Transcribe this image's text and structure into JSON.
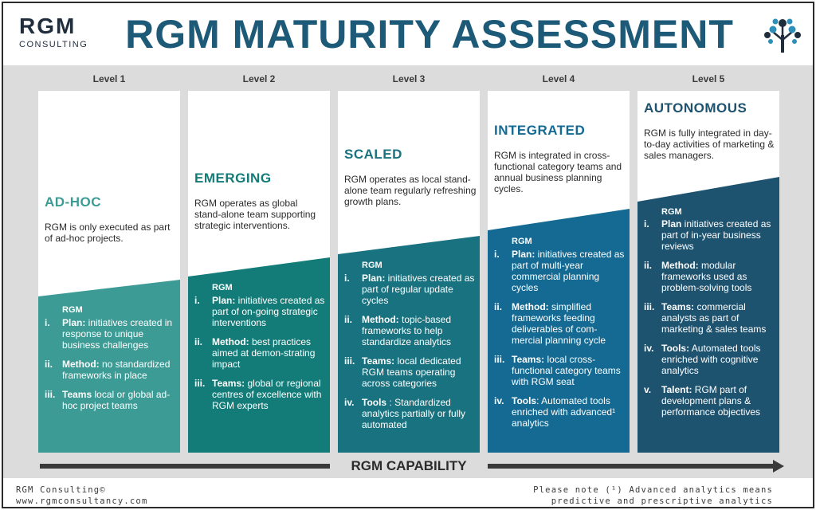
{
  "brand": {
    "name": "RGM",
    "sub": "CONSULTING"
  },
  "title": "RGM MATURITY ASSESSMENT",
  "colors": {
    "title": "#1d5a78",
    "level1": "#3d9b95",
    "level2": "#137c78",
    "level3": "#19727f",
    "level4": "#146a92",
    "level5": "#1e5370",
    "background": "#dcdcdc"
  },
  "levels": [
    {
      "header": "Level 1",
      "name": "AD-HOC",
      "description": "RGM is only executed as part of ad-hoc projects.",
      "rgm_label": "RGM",
      "items": [
        {
          "num": "i.",
          "key": "Plan:",
          "text": " initiatives created in response to unique business challenges"
        },
        {
          "num": "ii.",
          "key": "Method:",
          "text": " no standardized frameworks in place"
        },
        {
          "num": "iii.",
          "key": "Teams",
          "text": " local or global ad-hoc project teams"
        }
      ]
    },
    {
      "header": "Level 2",
      "name": "EMERGING",
      "description": "RGM operates as global stand-alone team supporting strategic interventions.",
      "rgm_label": "RGM",
      "items": [
        {
          "num": "i.",
          "key": "Plan:",
          "text": " initiatives created as part of on-going strategic interventions"
        },
        {
          "num": "ii.",
          "key": "Method:",
          "text": " best practices aimed at demon-strating impact"
        },
        {
          "num": "iii.",
          "key": "Teams:",
          "text": " global or regional centres of excellence with RGM experts"
        }
      ]
    },
    {
      "header": "Level 3",
      "name": "SCALED",
      "description": "RGM operates as local stand-alone team regularly refreshing growth plans.",
      "rgm_label": "RGM",
      "items": [
        {
          "num": "i.",
          "key": "Plan:",
          "text": " initiatives created as part of regular update cycles"
        },
        {
          "num": "ii.",
          "key": "Method:",
          "text": " topic-based frameworks to help standardize analytics"
        },
        {
          "num": "iii.",
          "key": "Teams:",
          "text": " local dedicated RGM teams operating across categories"
        },
        {
          "num": "iv.",
          "key": "Tools",
          "text": " : Standardized analytics partially or fully automated"
        }
      ]
    },
    {
      "header": "Level 4",
      "name": "INTEGRATED",
      "description": "RGM is integrated in cross-functional category teams and annual business planning cycles.",
      "rgm_label": "RGM",
      "items": [
        {
          "num": "i.",
          "key": "Plan:",
          "text": " initiatives created as part of multi-year commercial planning cycles"
        },
        {
          "num": "ii.",
          "key": "Method:",
          "text": " simplified frameworks feeding deliverables of com-mercial planning cycle"
        },
        {
          "num": "iii.",
          "key": "Teams:",
          "text": " local cross-functional category teams with RGM seat"
        },
        {
          "num": "iv.",
          "key": "Tools",
          "text": ": Automated tools enriched with advanced¹ analytics"
        }
      ]
    },
    {
      "header": "Level 5",
      "name": "AUTONOMOUS",
      "description": "RGM is fully integrated in day-to-day activities of marketing & sales managers.",
      "rgm_label": "RGM",
      "items": [
        {
          "num": "i.",
          "key": "Plan",
          "text": " initiatives created as part of in-year business reviews"
        },
        {
          "num": "ii.",
          "key": "Method:",
          "text": " modular frameworks used as problem-solving tools"
        },
        {
          "num": "iii.",
          "key": "Teams:",
          "text": " commercial analysts as part of marketing & sales teams"
        },
        {
          "num": "iv.",
          "key": "Tools:",
          "text": " Automated tools enriched with cognitive analytics"
        },
        {
          "num": "v.",
          "key": "Talent:",
          "text": " RGM part of development plans & performance objectives"
        }
      ]
    }
  ],
  "capability_label": "RGM CAPABILITY",
  "footer": {
    "left_line1": "RGM Consulting©",
    "left_line2": "www.rgmconsultancy.com",
    "right_line1": "Please note (¹) Advanced analytics means",
    "right_line2": "predictive and prescriptive analytics"
  }
}
